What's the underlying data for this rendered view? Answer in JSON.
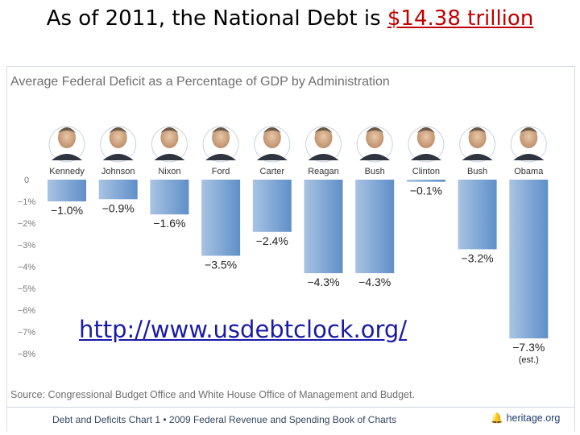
{
  "slide": {
    "title_prefix": "As of 2011, the National Debt is ",
    "title_amount": "$14.38 trillion",
    "link": "http://www.usdebtclock.org/"
  },
  "colors": {
    "bar_top": "#a9c3e3",
    "bar_bottom": "#5f8fc8",
    "accent_red": "#c00000",
    "link_blue": "#1a1aa8"
  },
  "chart_data": {
    "type": "bar",
    "title": "Average Federal Deficit as a Percentage of GDP by Administration",
    "categories": [
      "Kennedy",
      "Johnson",
      "Nixon",
      "Ford",
      "Carter",
      "Reagan",
      "Bush",
      "Clinton",
      "Bush",
      "Obama"
    ],
    "values": [
      -1.0,
      -0.9,
      -1.6,
      -3.5,
      -2.4,
      -4.3,
      -4.3,
      -0.1,
      -3.2,
      -7.3
    ],
    "value_labels": [
      "−1.0%",
      "−0.9%",
      "−1.6%",
      "−3.5%",
      "−2.4%",
      "−4.3%",
      "−4.3%",
      "−0.1%",
      "−3.2%",
      "−7.3%"
    ],
    "annotations": [
      "",
      "",
      "",
      "",
      "",
      "",
      "",
      "",
      "",
      "(est.)"
    ],
    "yticks": [
      0,
      -1,
      -2,
      -3,
      -4,
      -5,
      -6,
      -7,
      -8
    ],
    "ytick_labels": [
      "0",
      "−1%",
      "−2%",
      "−3%",
      "−4%",
      "−5%",
      "−6%",
      "−7%",
      "−8%"
    ],
    "ylim": [
      -8,
      0
    ],
    "grid": false,
    "source": "Source: Congressional Budget Office and White House Office of Management and Budget.",
    "footer": "Debt and Deficits Chart 1 • 2009 Federal Revenue and Spending Book of Charts",
    "footer_brand": "heritage.org"
  }
}
